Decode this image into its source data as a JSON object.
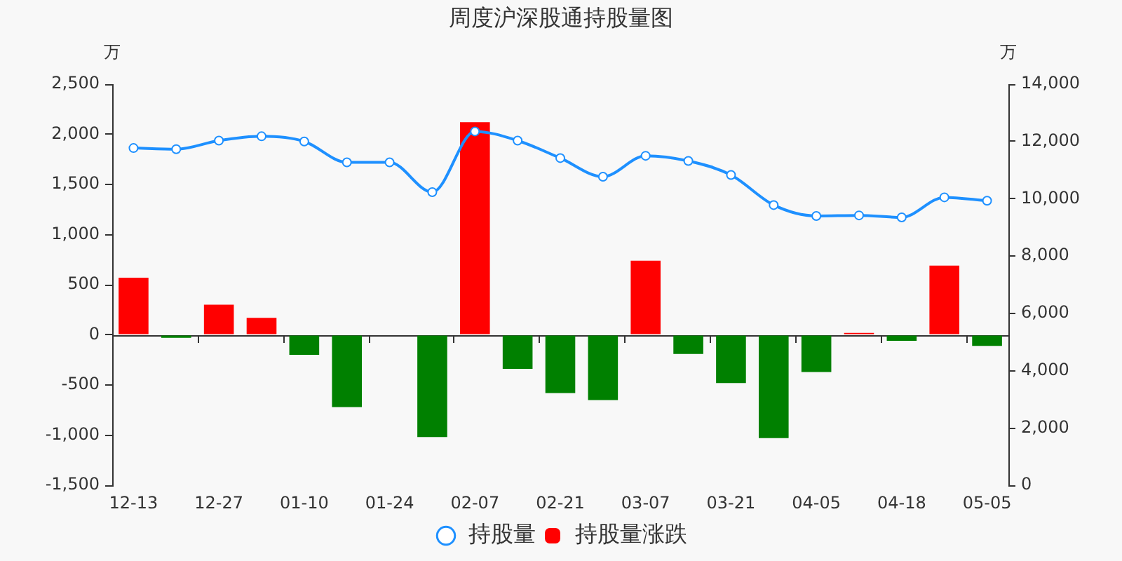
{
  "chart_data": {
    "type": "bar",
    "title": "周度沪深股通持股量图",
    "ylabel": "万",
    "y2label": "万",
    "categories": [
      "12-13",
      null,
      "12-27",
      null,
      "01-10",
      null,
      "01-24",
      null,
      "02-07",
      null,
      "02-21",
      null,
      "03-07",
      null,
      "03-21",
      null,
      "04-05",
      null,
      "04-18",
      null,
      "05-05"
    ],
    "series": [
      {
        "name": "持股量",
        "type": "line",
        "axis": "y2",
        "color": "#1e90ff",
        "values": [
          11770,
          11730,
          12030,
          12180,
          12000,
          11270,
          11270,
          10230,
          12350,
          12030,
          11420,
          10770,
          11500,
          11320,
          10830,
          9780,
          9400,
          9420,
          9350,
          10050,
          9930
        ]
      },
      {
        "name": "持股量涨跌",
        "colors": [
          "#ff0000",
          "#008000",
          "#ff0000",
          "#ff0000",
          "#008000",
          "#008000",
          "#008000",
          "#008000",
          "#ff0000",
          "#008000",
          "#008000",
          "#008000",
          "#ff0000",
          "#008000",
          "#008000",
          "#008000",
          "#008000",
          "#ff0000",
          "#008000",
          "#ff0000",
          "#008000"
        ],
        "values": [
          570,
          -30,
          300,
          170,
          -200,
          -720,
          0,
          -1020,
          2120,
          -340,
          -580,
          -650,
          740,
          -190,
          -480,
          -1030,
          -370,
          20,
          -60,
          690,
          -110
        ]
      }
    ],
    "ylim": [
      -1500,
      2500
    ],
    "yticks": [
      {
        "value": -1500,
        "label": "-1,500"
      },
      {
        "value": -1000,
        "label": "-1,000"
      },
      -500,
      0,
      500,
      {
        "value": 1000,
        "label": "1,000"
      },
      {
        "value": 1500,
        "label": "1,500"
      },
      {
        "value": 2000,
        "label": "2,000"
      },
      {
        "value": 2500,
        "label": "2,500"
      }
    ],
    "y2lim": [
      0,
      14000
    ],
    "y2ticks": [
      0,
      {
        "value": 2000,
        "label": "2,000"
      },
      {
        "value": 4000,
        "label": "4,000"
      },
      {
        "value": 6000,
        "label": "6,000"
      },
      {
        "value": 8000,
        "label": "8,000"
      },
      {
        "value": 10000,
        "label": "10,000"
      },
      {
        "value": 12000,
        "label": "12,000"
      },
      {
        "value": 14000,
        "label": "14,000"
      }
    ],
    "legend": "bottom",
    "marker": "circle"
  }
}
